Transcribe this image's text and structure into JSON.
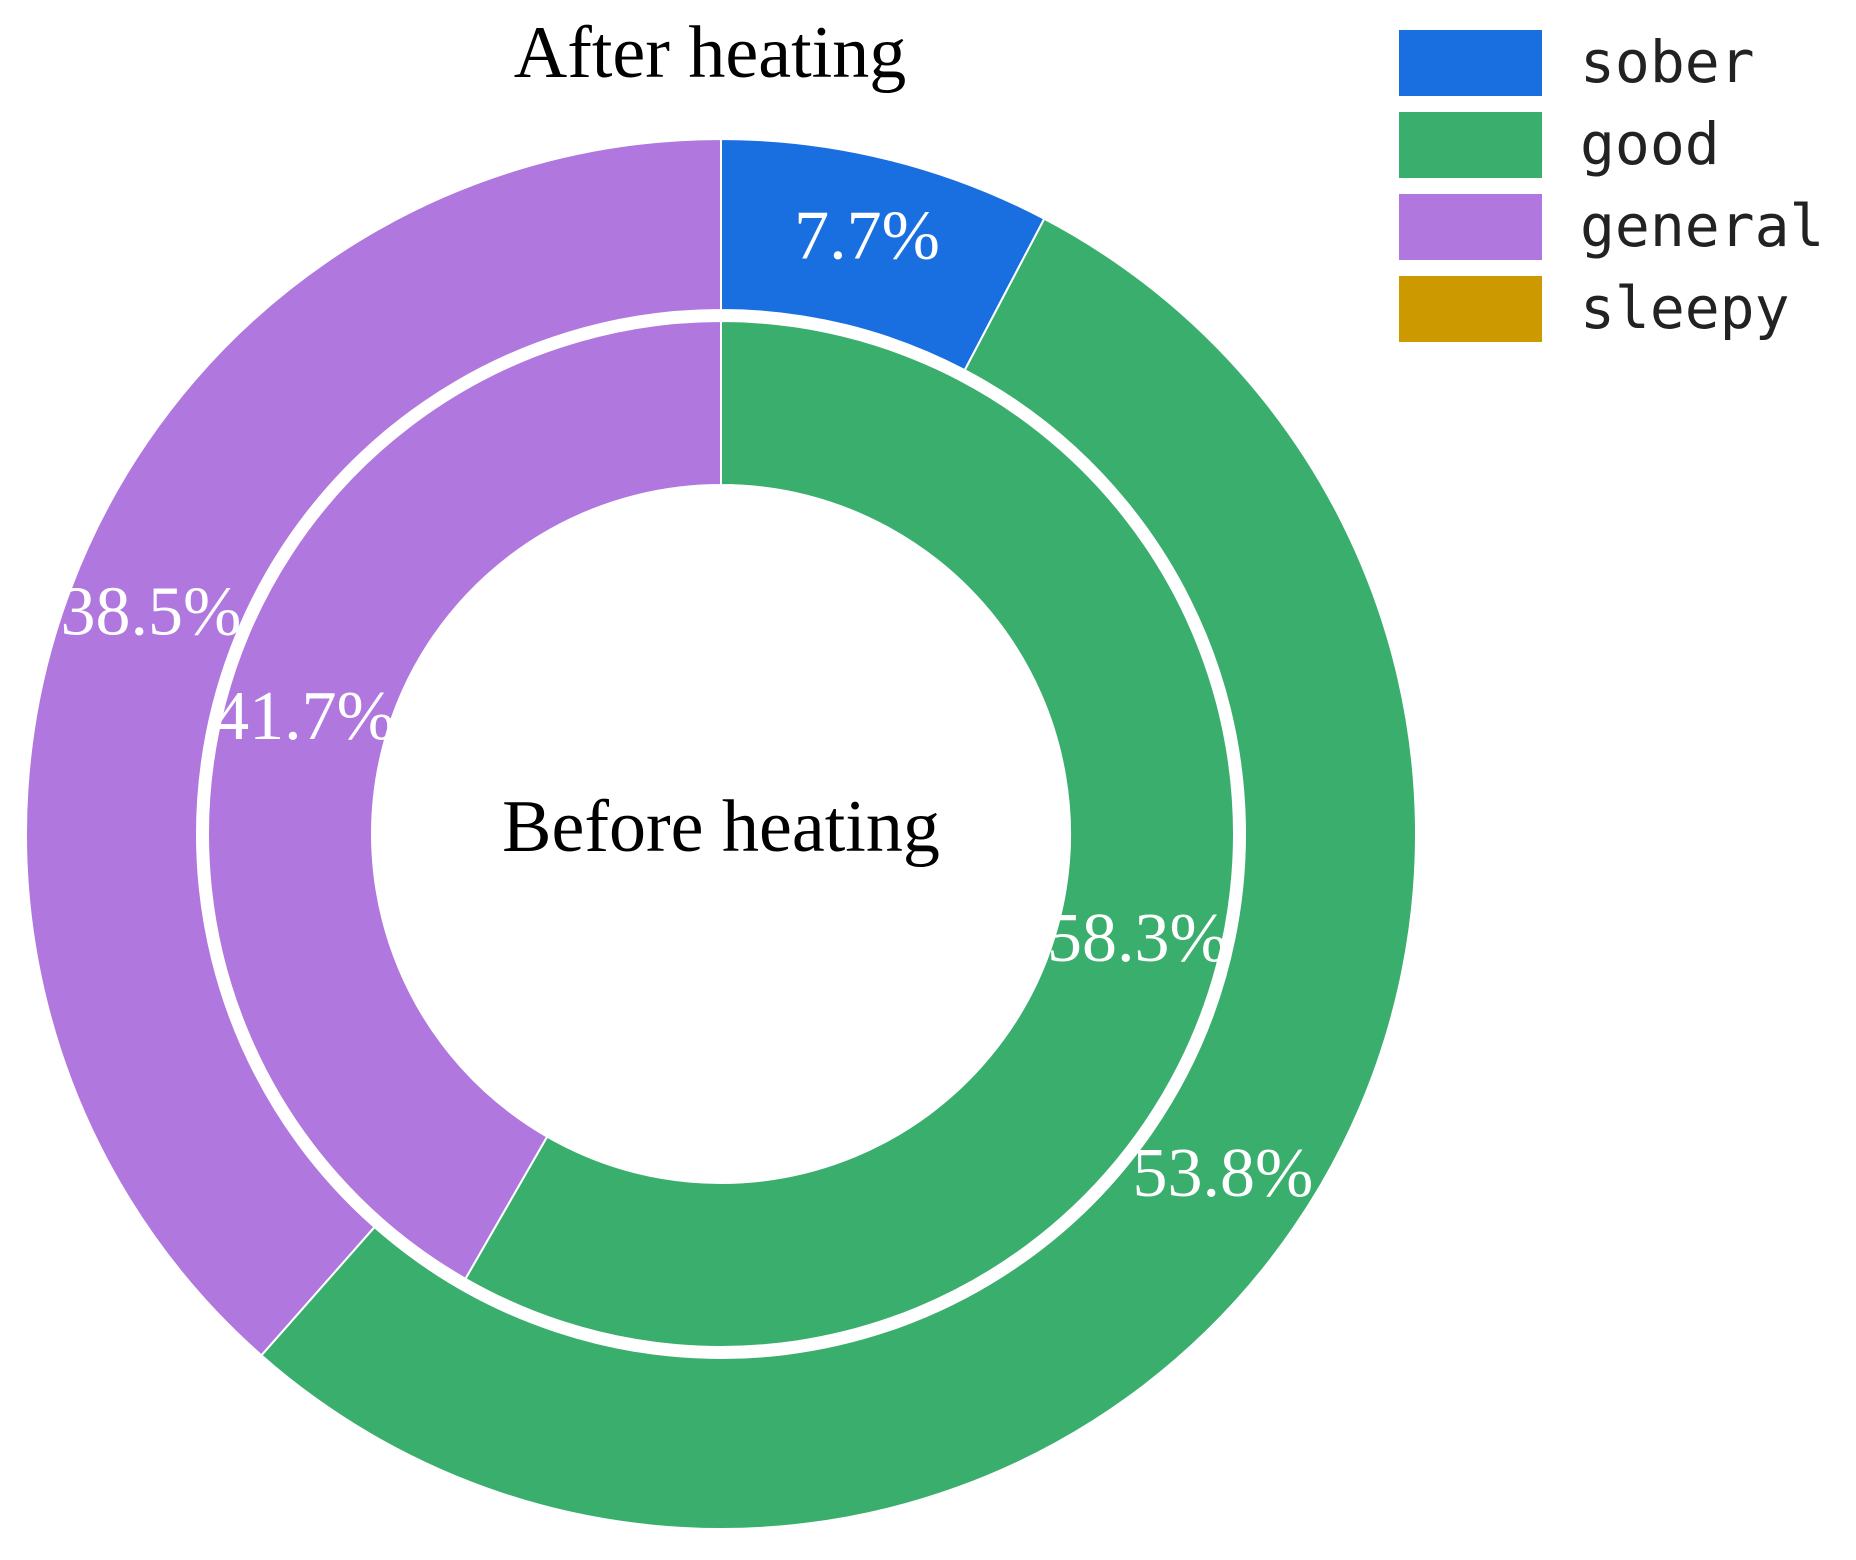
{
  "chart_data": {
    "type": "nested-donut",
    "categories": [
      "sober",
      "good",
      "general",
      "sleepy"
    ],
    "colors": [
      "#1a6fe0",
      "#3aae6d",
      "#b077de",
      "#cc9900"
    ],
    "series": [
      {
        "name": "After heating",
        "values": [
          7.7,
          53.8,
          38.5,
          0
        ],
        "value_labels": [
          "7.7%",
          "53.8%",
          "38.5%",
          null
        ]
      },
      {
        "name": "Before heating",
        "values": [
          0,
          58.3,
          41.7,
          0
        ],
        "value_labels": [
          null,
          "58.3%",
          "41.7%",
          null
        ]
      }
    ],
    "legend": "upper right"
  }
}
